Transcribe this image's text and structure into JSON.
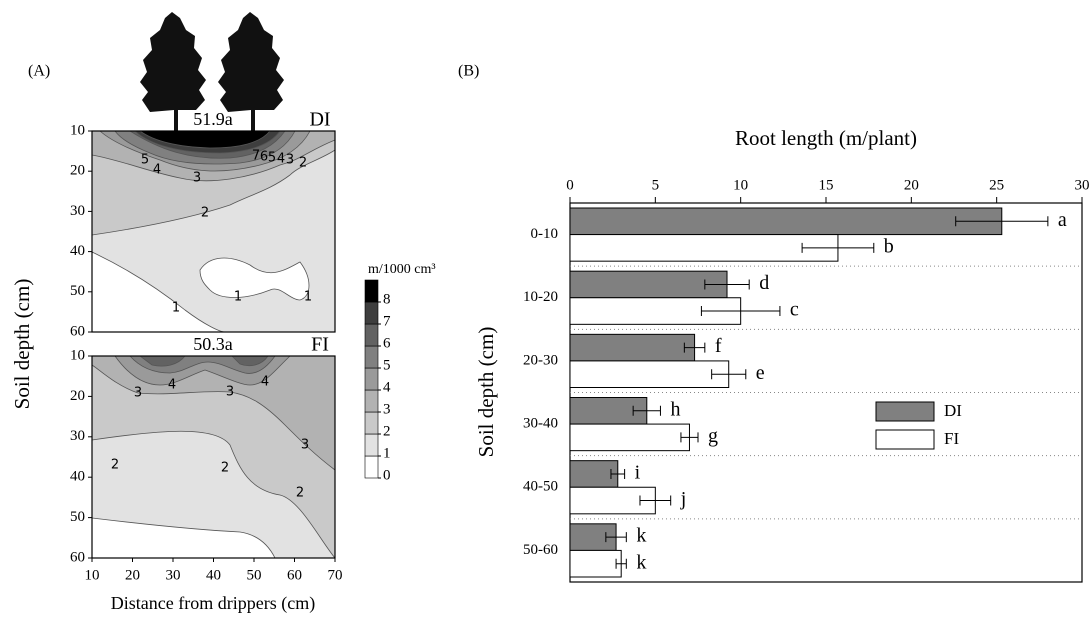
{
  "chart_data": [
    {
      "type": "contour",
      "panel": "(A)",
      "annotation": "51.9a",
      "label": "DI",
      "ylabel": "Soil depth (cm)",
      "xlim": [
        10,
        70
      ],
      "ylim": [
        10,
        60
      ],
      "y_inverted": true,
      "yticks": [
        10,
        20,
        30,
        40,
        50,
        60
      ],
      "contour_labels": [
        5,
        4,
        3,
        7,
        6,
        5,
        4,
        3,
        2,
        2,
        1,
        1,
        1
      ],
      "colorbar": {
        "label": "m/1000 cm³",
        "ticks": [
          0,
          1,
          2,
          3,
          4,
          5,
          6,
          7,
          8
        ],
        "colors": [
          "#ffffff",
          "#e2e2e2",
          "#c9c9c9",
          "#b2b2b2",
          "#9a9a9a",
          "#808080",
          "#626262",
          "#3e3e3e",
          "#000000"
        ]
      }
    },
    {
      "type": "contour",
      "annotation": "50.3a",
      "label": "FI",
      "xlabel": "Distance from drippers (cm)",
      "xlim": [
        10,
        70
      ],
      "ylim": [
        10,
        60
      ],
      "y_inverted": true,
      "xticks": [
        10,
        20,
        30,
        40,
        50,
        60,
        70
      ],
      "yticks": [
        10,
        20,
        30,
        40,
        50,
        60
      ],
      "contour_labels": [
        3,
        4,
        3,
        4,
        3,
        2,
        2,
        2
      ]
    },
    {
      "type": "hbar",
      "panel": "(B)",
      "title": "Root length (m/plant)",
      "ylabel": "Soil depth (cm)",
      "categories": [
        "0-10",
        "10-20",
        "20-30",
        "30-40",
        "40-50",
        "50-60"
      ],
      "xlim": [
        0,
        30
      ],
      "xticks": [
        0,
        5,
        10,
        15,
        20,
        25,
        30
      ],
      "series": [
        {
          "name": "DI",
          "color": "#808080",
          "values": [
            25.3,
            9.2,
            7.3,
            4.5,
            2.8,
            2.7
          ],
          "errors": [
            2.7,
            1.3,
            0.6,
            0.8,
            0.4,
            0.6
          ],
          "letters": [
            "a",
            "d",
            "f",
            "h",
            "i",
            "k"
          ]
        },
        {
          "name": "FI",
          "color": "#ffffff",
          "values": [
            15.7,
            10.0,
            9.3,
            7.0,
            5.0,
            3.0
          ],
          "errors": [
            2.1,
            2.3,
            1.0,
            0.5,
            0.9,
            0.3
          ],
          "letters": [
            "b",
            "c",
            "e",
            "g",
            "j",
            "k"
          ]
        }
      ]
    }
  ]
}
